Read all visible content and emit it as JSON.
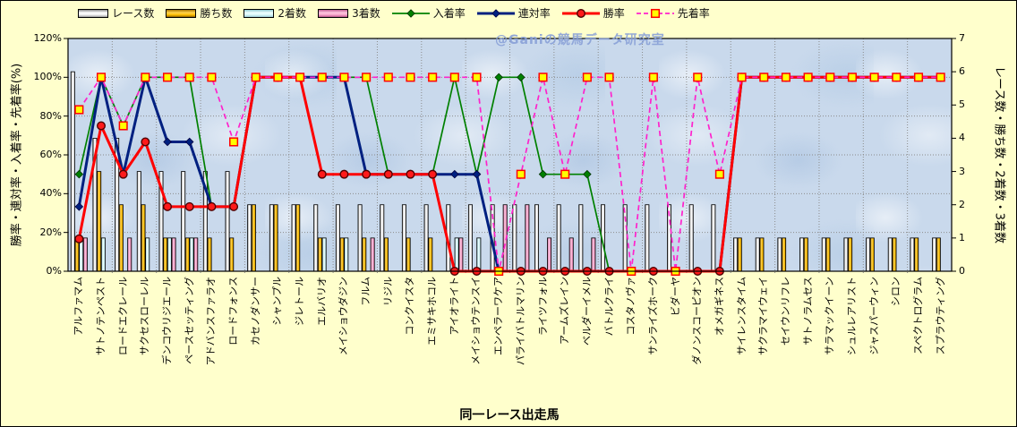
{
  "watermark": "@Ganiの競馬データ研究室",
  "axes": {
    "left_title": "勝率・連対率・入着率・先着率(%)",
    "right_title": "レース数・勝ち数・2着数・3着数",
    "x_title": "同一レース出走馬"
  },
  "colors": {
    "background": "#FFFFCC",
    "plot_background": "#C9D9EC",
    "grid": "#8C8C8C",
    "watermark": "#88A0D7"
  },
  "chart_data": {
    "type": "bar+line combo",
    "legend_position": "top",
    "grid": "dotted; horizontal every 20%, vertical every 2 categories",
    "left_axis": {
      "min": 0,
      "max": 120,
      "step": 20,
      "unit": "%",
      "ticks": [
        "0%",
        "20%",
        "40%",
        "60%",
        "80%",
        "100%",
        "120%"
      ]
    },
    "right_axis": {
      "min": 0,
      "max": 7,
      "step": 1,
      "ticks": [
        "0",
        "1",
        "2",
        "3",
        "4",
        "5",
        "6",
        "7"
      ]
    },
    "categories": [
      "アルファマム",
      "サトノテンペスト",
      "ロードエクレール",
      "サクセスローレル",
      "デンコウリジエール",
      "ペースセッティング",
      "アドバンスファラオ",
      "ロードフォンス",
      "カセノダンサー",
      "シャンプル",
      "ジレトール",
      "エルバリオ",
      "メイショウダジン",
      "フルム",
      "リジル",
      "コンクイスタ",
      "エミサキホコル",
      "アイオライト",
      "メイショウテンスイ",
      "エンペラーワケア",
      "パライバトルマリン",
      "ライツフォル",
      "アームズレイン",
      "ベルダーイメル",
      "バトルクライ",
      "コスタノヴァ",
      "サンライズホーク",
      "ビダーヤ",
      "ダノンスコーピオン",
      "オメガギネス",
      "サイレンスタイム",
      "サクラマイウェイ",
      "セイウンリフレ",
      "サトノラムセス",
      "サラマックイーン",
      "シュルレアリスト",
      "ジャスパーウィン",
      "シロン",
      "スペクトログラム",
      "スプラウティング"
    ],
    "series": [
      {
        "key": "races",
        "name": "レース数",
        "type": "bar",
        "axis": "right",
        "color": "#FFFFFF",
        "grad": [
          "#8C8C8C",
          "#FFFFFF",
          "#EFEFEF",
          "#9E9E9E"
        ],
        "values": [
          6,
          4,
          4,
          3,
          3,
          3,
          3,
          3,
          2,
          2,
          2,
          2,
          2,
          2,
          2,
          2,
          2,
          2,
          2,
          2,
          2,
          2,
          2,
          2,
          2,
          2,
          2,
          2,
          2,
          2,
          1,
          1,
          1,
          1,
          1,
          1,
          1,
          1,
          1,
          1
        ]
      },
      {
        "key": "wins",
        "name": "勝ち数",
        "type": "bar",
        "axis": "right",
        "color": "#FFBF00",
        "grad": [
          "#A87400",
          "#FFD24D",
          "#FFBF00",
          "#8F6400"
        ],
        "values": [
          1,
          3,
          2,
          2,
          1,
          1,
          1,
          1,
          2,
          2,
          2,
          1,
          1,
          1,
          1,
          1,
          1,
          0,
          0,
          0,
          0,
          0,
          0,
          0,
          0,
          0,
          0,
          0,
          0,
          0,
          1,
          1,
          1,
          1,
          1,
          1,
          1,
          1,
          1,
          1
        ]
      },
      {
        "key": "seconds",
        "name": "2着数",
        "type": "bar",
        "axis": "right",
        "color": "#D8F8FA",
        "grad": [
          "#8FC8D0",
          "#EFFFFF",
          "#D8F8FA",
          "#9CCAD4"
        ],
        "values": [
          1,
          1,
          0,
          1,
          1,
          1,
          0,
          0,
          0,
          0,
          0,
          1,
          1,
          0,
          0,
          0,
          0,
          1,
          1,
          0,
          0,
          0,
          0,
          0,
          0,
          0,
          0,
          0,
          0,
          0,
          0,
          0,
          0,
          0,
          0,
          0,
          0,
          0,
          0,
          0
        ]
      },
      {
        "key": "thirds",
        "name": "3着数",
        "type": "bar",
        "axis": "right",
        "color": "#F7A6CA",
        "grad": [
          "#C05C90",
          "#FFC6E0",
          "#F7A6CA",
          "#B85489"
        ],
        "values": [
          1,
          0,
          1,
          0,
          1,
          1,
          0,
          0,
          0,
          0,
          0,
          0,
          0,
          1,
          0,
          0,
          0,
          1,
          0,
          2,
          2,
          1,
          1,
          1,
          0,
          0,
          0,
          0,
          0,
          0,
          0,
          0,
          0,
          0,
          0,
          0,
          0,
          0,
          0,
          0
        ]
      },
      {
        "key": "place_rate",
        "name": "入着率",
        "type": "line",
        "axis": "left",
        "color": "#008000",
        "width": 1.7,
        "dash": false,
        "marker": "diamond",
        "marker_fill": "#008000",
        "marker_stroke": "#003300",
        "values": [
          50,
          100,
          75,
          100,
          100,
          100,
          33.3,
          33.3,
          100,
          100,
          100,
          100,
          100,
          100,
          50,
          50,
          50,
          100,
          50,
          100,
          100,
          50,
          50,
          50,
          0,
          0,
          0,
          0,
          0,
          0,
          100,
          100,
          100,
          100,
          100,
          100,
          100,
          100,
          100,
          100
        ]
      },
      {
        "key": "quinella_rate",
        "name": "連対率",
        "type": "line",
        "axis": "left",
        "color": "#002080",
        "width": 3,
        "dash": false,
        "marker": "diamond",
        "marker_fill": "#002080",
        "marker_stroke": "#000040",
        "values": [
          33.3,
          100,
          50,
          100,
          66.7,
          66.7,
          33.3,
          33.3,
          100,
          100,
          100,
          100,
          100,
          50,
          50,
          50,
          50,
          50,
          50,
          0,
          0,
          0,
          0,
          0,
          0,
          0,
          0,
          0,
          0,
          0,
          100,
          100,
          100,
          100,
          100,
          100,
          100,
          100,
          100,
          100
        ]
      },
      {
        "key": "win_rate",
        "name": "勝率",
        "type": "line",
        "axis": "left",
        "color": "#FF0000",
        "width": 3,
        "dash": false,
        "marker": "circle",
        "marker_fill": "#FF1A1A",
        "marker_stroke": "#500000",
        "values": [
          16.7,
          75,
          50,
          66.7,
          33.3,
          33.3,
          33.3,
          33.3,
          100,
          100,
          100,
          50,
          50,
          50,
          50,
          50,
          50,
          0,
          0,
          0,
          0,
          0,
          0,
          0,
          0,
          0,
          0,
          0,
          0,
          0,
          100,
          100,
          100,
          100,
          100,
          100,
          100,
          100,
          100,
          100
        ]
      },
      {
        "key": "ahead_rate",
        "name": "先着率",
        "type": "line",
        "axis": "left",
        "color": "#FF22CC",
        "width": 1.7,
        "dash": true,
        "marker": "square",
        "marker_fill": "#FFFF00",
        "marker_stroke": "#FF0000",
        "values": [
          83.3,
          100,
          75,
          100,
          100,
          100,
          100,
          66.7,
          100,
          100,
          100,
          100,
          100,
          100,
          100,
          100,
          100,
          100,
          100,
          0,
          50,
          100,
          50,
          100,
          100,
          0,
          100,
          0,
          100,
          50,
          100,
          100,
          100,
          100,
          100,
          100,
          100,
          100,
          100,
          100
        ]
      }
    ]
  }
}
